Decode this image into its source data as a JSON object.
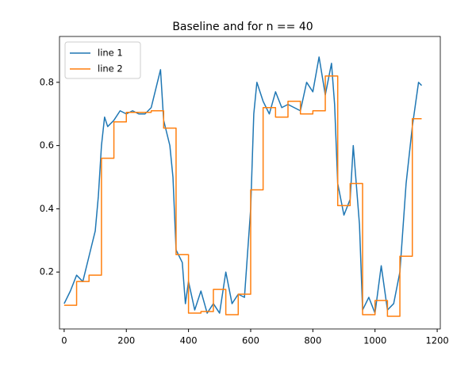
{
  "chart_data": {
    "type": "line",
    "title": "Baseline and for n == 40",
    "xlim": [
      -15,
      1210
    ],
    "ylim": [
      0.02,
      0.945
    ],
    "xticks": [
      0,
      200,
      400,
      600,
      800,
      1000,
      1200
    ],
    "yticks": [
      0.2,
      0.4,
      0.6,
      0.8
    ],
    "legend": "upper left",
    "series": [
      {
        "name": "line 1",
        "color": "#1f77b4",
        "drawstyle": "default",
        "x": [
          0,
          20,
          40,
          60,
          80,
          100,
          110,
          120,
          130,
          140,
          160,
          180,
          200,
          220,
          240,
          260,
          280,
          300,
          310,
          320,
          340,
          350,
          360,
          380,
          390,
          400,
          420,
          440,
          460,
          480,
          500,
          520,
          540,
          560,
          580,
          600,
          610,
          620,
          640,
          660,
          680,
          700,
          720,
          740,
          760,
          780,
          800,
          820,
          840,
          860,
          870,
          880,
          900,
          920,
          930,
          950,
          960,
          980,
          1000,
          1020,
          1040,
          1060,
          1080,
          1100,
          1120,
          1140,
          1150
        ],
        "values": [
          0.1,
          0.14,
          0.19,
          0.17,
          0.25,
          0.33,
          0.44,
          0.6,
          0.69,
          0.66,
          0.68,
          0.71,
          0.7,
          0.71,
          0.7,
          0.7,
          0.72,
          0.8,
          0.84,
          0.68,
          0.6,
          0.5,
          0.27,
          0.23,
          0.1,
          0.17,
          0.08,
          0.14,
          0.07,
          0.1,
          0.07,
          0.2,
          0.1,
          0.13,
          0.12,
          0.4,
          0.7,
          0.8,
          0.74,
          0.7,
          0.77,
          0.72,
          0.73,
          0.72,
          0.71,
          0.8,
          0.77,
          0.88,
          0.76,
          0.86,
          0.73,
          0.48,
          0.38,
          0.43,
          0.6,
          0.35,
          0.08,
          0.12,
          0.07,
          0.22,
          0.08,
          0.1,
          0.2,
          0.48,
          0.66,
          0.8,
          0.79
        ]
      },
      {
        "name": "line 2",
        "color": "#ff7f0e",
        "drawstyle": "steps-post",
        "x": [
          0,
          40,
          80,
          120,
          160,
          200,
          240,
          280,
          320,
          360,
          400,
          440,
          480,
          520,
          560,
          600,
          640,
          680,
          720,
          760,
          800,
          840,
          880,
          920,
          960,
          1000,
          1040,
          1080,
          1120,
          1150
        ],
        "values": [
          0.095,
          0.17,
          0.19,
          0.56,
          0.675,
          0.705,
          0.705,
          0.71,
          0.655,
          0.255,
          0.07,
          0.075,
          0.145,
          0.065,
          0.13,
          0.46,
          0.72,
          0.69,
          0.74,
          0.7,
          0.71,
          0.82,
          0.41,
          0.48,
          0.065,
          0.11,
          0.06,
          0.25,
          0.685,
          0.685
        ]
      }
    ]
  }
}
